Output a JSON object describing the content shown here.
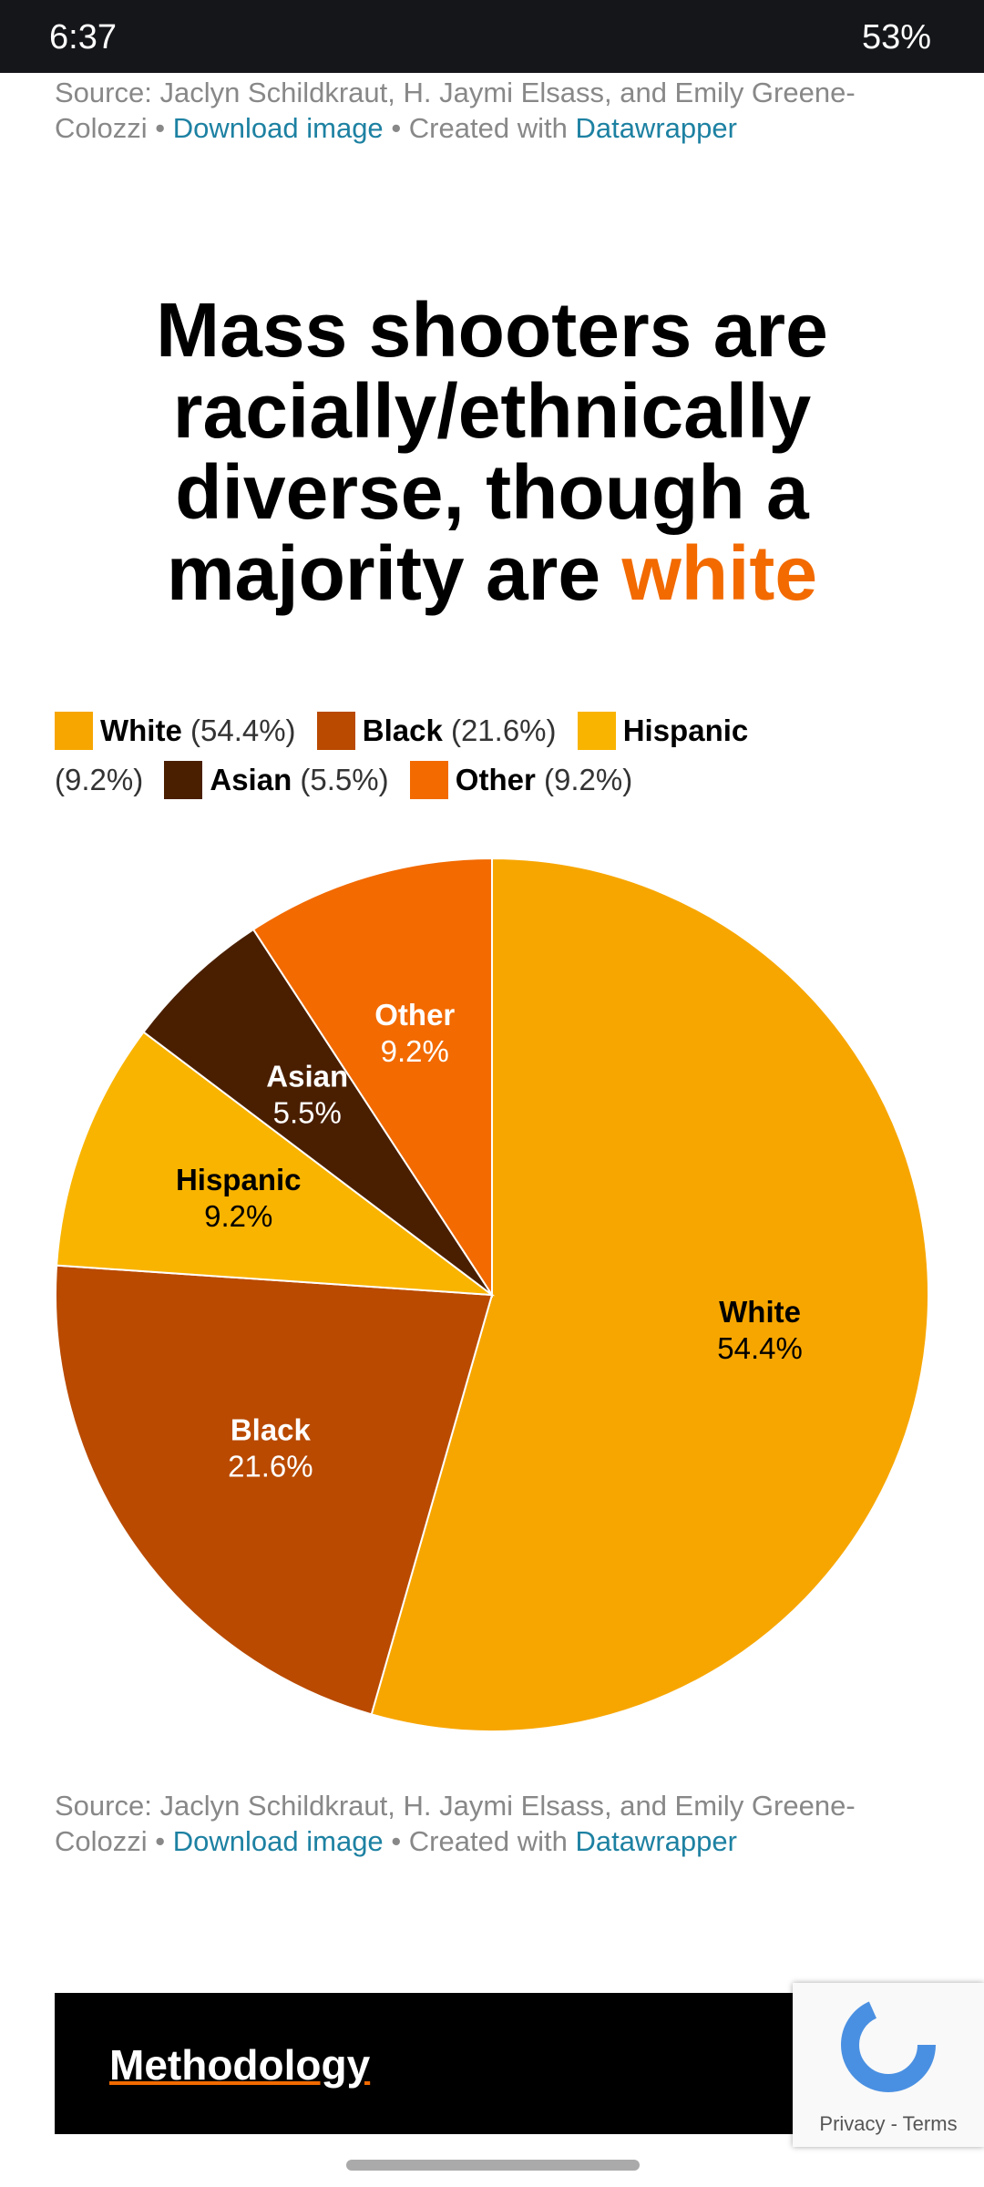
{
  "status_bar": {
    "time": "6:37",
    "battery": "53%"
  },
  "source": {
    "text": "Source: Jaclyn Schildkraut, H. Jaymi Elsass, and Emily Greene-Colozzi",
    "separator": "•",
    "download": "Download image",
    "created": "Created with",
    "datawrapper": "Datawrapper"
  },
  "chart_data": {
    "type": "pie",
    "title": "Mass shooters are racially/ethnically diverse, though a majority are",
    "title_highlight": "white",
    "categories": [
      "White",
      "Black",
      "Hispanic",
      "Asian",
      "Other"
    ],
    "values": [
      54.4,
      21.6,
      9.2,
      5.5,
      9.2
    ],
    "value_labels": [
      "54.4%",
      "21.6%",
      "9.2%",
      "5.5%",
      "9.2%"
    ],
    "legend_labels": [
      "(54.4%)",
      "(21.6%)",
      "(9.2%)",
      "(5.5%)",
      "(9.2%)"
    ],
    "colors": [
      "#f7a600",
      "#b94a00",
      "#f9b400",
      "#4a1f00",
      "#f26a00"
    ],
    "label_colors": [
      "#000000",
      "#ffffff",
      "#000000",
      "#ffffff",
      "#ffffff"
    ]
  },
  "footer": {
    "methodology": "Methodology",
    "recaptcha": "Privacy - Terms"
  }
}
